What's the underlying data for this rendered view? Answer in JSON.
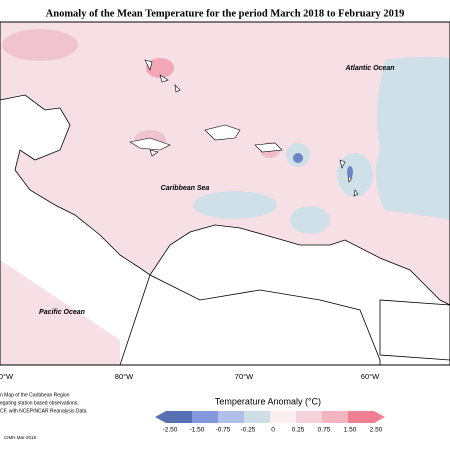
{
  "title": "Anomaly of the Mean Temperature for the period March 2018 to February 2019",
  "labels": {
    "atlantic": "Atlantic Ocean",
    "caribbean": "Caribbean Sea",
    "pacific": "Pacific Ocean"
  },
  "longitudes": [
    "0°W",
    "80°W",
    "70°W",
    "60°W"
  ],
  "legend": {
    "title": "Temperature Anomaly (°C)",
    "ticks": [
      "-2.50",
      "-1.50",
      "-0.75",
      "-0.25",
      "0",
      "0.25",
      "0.75",
      "1.50",
      "2.50"
    ]
  },
  "credits": [
    "n Map of the Caribbean Region",
    "egating station based observations,",
    "CF, with NCEP/NCAR Reanalysis Data.",
    "CIMH Mar-2019"
  ]
}
